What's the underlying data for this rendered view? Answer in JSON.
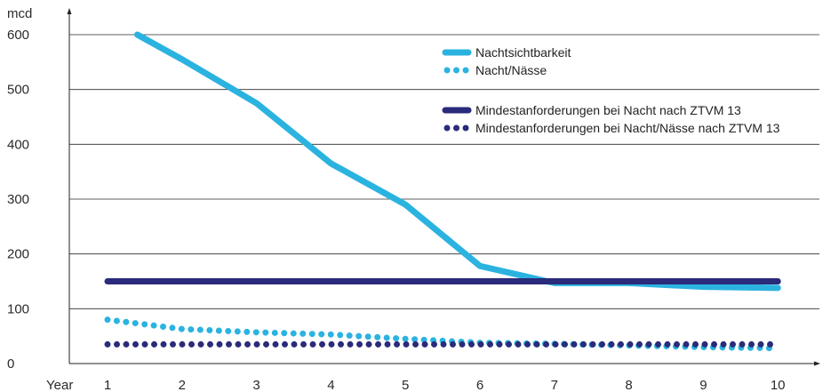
{
  "chart_data": {
    "type": "line",
    "ylabel": "mcd",
    "xlabel": "Year",
    "ylim": [
      0,
      600
    ],
    "yticks": [
      "0",
      "100",
      "200",
      "300",
      "400",
      "500",
      "600"
    ],
    "yticks_values": [
      0,
      100,
      200,
      300,
      400,
      500,
      600
    ],
    "xticks": [
      "1",
      "2",
      "3",
      "4",
      "5",
      "6",
      "7",
      "8",
      "9",
      "10"
    ],
    "grid": true,
    "legend_position": "top-right",
    "series": [
      {
        "name": "Nachtsichtbarkeit",
        "style": "solid",
        "color": "#2bb3e0",
        "x": [
          1.4,
          2,
          3,
          4,
          5,
          6,
          7,
          8,
          9,
          10
        ],
        "y": [
          600,
          555,
          475,
          365,
          290,
          178,
          147,
          147,
          140,
          138
        ]
      },
      {
        "name": "Nacht/Nässe",
        "style": "dotted",
        "color": "#2bb3e0",
        "x": [
          1,
          2,
          3,
          4,
          5,
          6,
          7,
          8,
          9,
          10
        ],
        "y": [
          80,
          63,
          57,
          53,
          45,
          38,
          36,
          33,
          30,
          28
        ]
      },
      {
        "name": "Mindestanforderungen bei Nacht nach ZTVM 13",
        "style": "solid",
        "color": "#2a2b7a",
        "x": [
          1,
          10
        ],
        "y": [
          150,
          150
        ]
      },
      {
        "name": "Mindestanforderungen bei Nacht/Nässe nach ZTVM 13",
        "style": "dotted",
        "color": "#2a2b7a",
        "x": [
          1,
          10
        ],
        "y": [
          35,
          35
        ]
      }
    ]
  }
}
